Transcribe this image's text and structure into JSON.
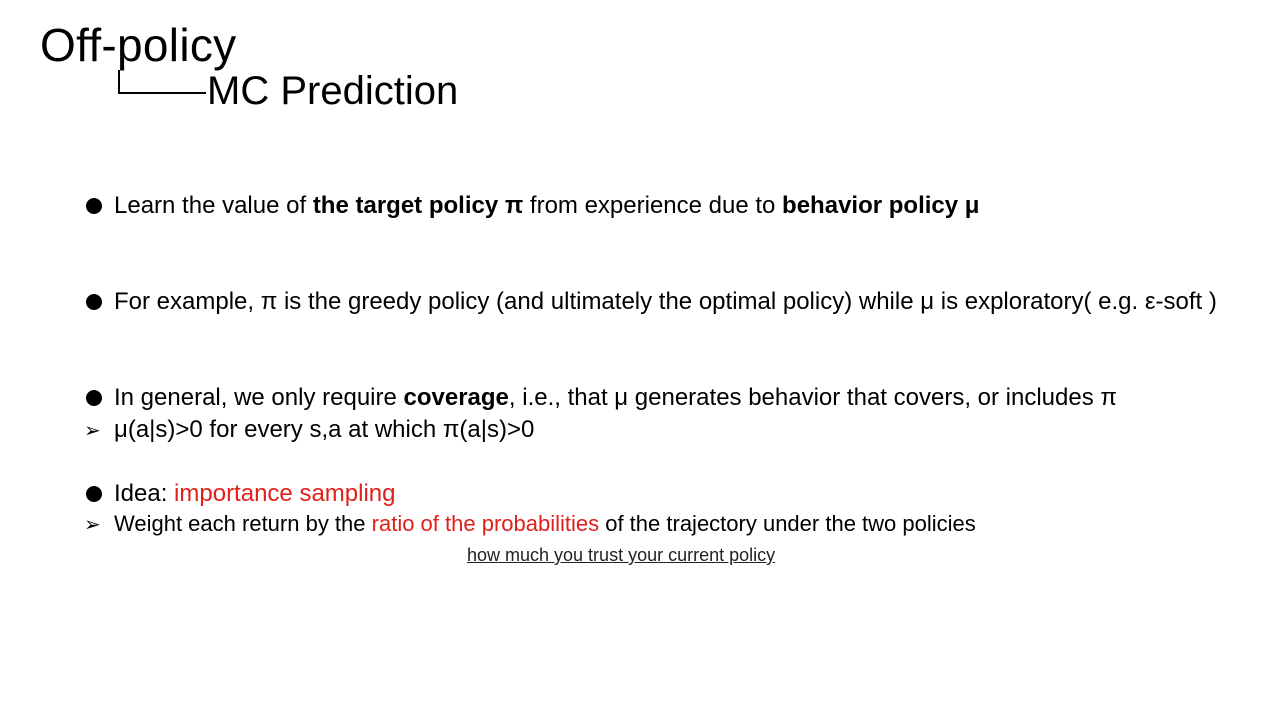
{
  "title": {
    "main": "Off-policy",
    "sub": "MC Prediction"
  },
  "bullets": {
    "b1": {
      "t1": "Learn the value of ",
      "bold1": "the target policy π",
      "t2": " from experience due to ",
      "bold2": "behavior policy μ"
    },
    "b2": {
      "text": "For example, π is the greedy policy (and ultimately the optimal policy) while μ is exploratory( e.g. ε-soft )"
    },
    "b3": {
      "t1": "In general, we only require ",
      "bold1": "coverage",
      "t2": ", i.e., that μ generates behavior that covers, or includes π"
    },
    "b3_sub": {
      "text": " μ(a|s)>0 for every s,a at which π(a|s)>0"
    },
    "b4": {
      "t1": " Idea: ",
      "red1": "importance sampling"
    },
    "b4_sub": {
      "t1": "Weight each return by the ",
      "red1": "ratio of the probabilities",
      "t2": " of the trajectory under the two policies"
    },
    "note": "how much you trust your current policy"
  },
  "colors": {
    "accent_red": "#e0201b",
    "text": "#000000",
    "background": "#ffffff"
  },
  "icons": {
    "bullet": "filled-circle-icon",
    "sub_bullet": "arrowhead-icon"
  }
}
